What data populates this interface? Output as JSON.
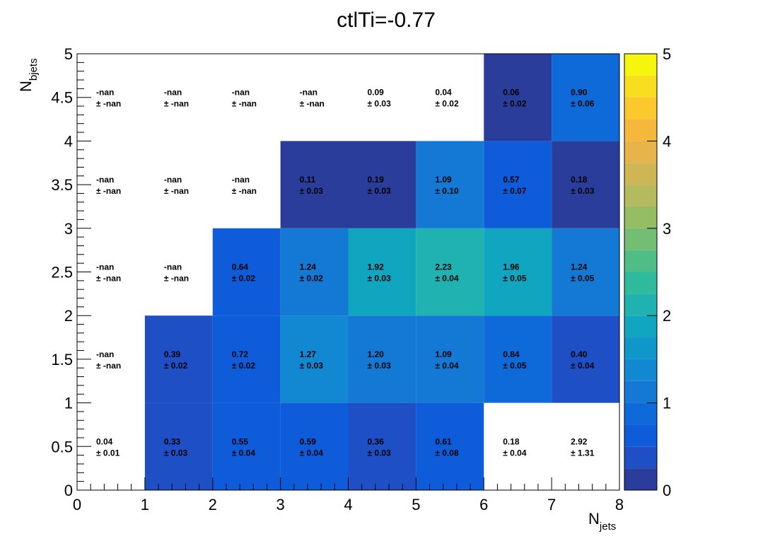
{
  "chart_data": {
    "type": "heatmap",
    "title": "ctlTi=-0.77",
    "xlabel": {
      "main": "N",
      "sub": "jets"
    },
    "ylabel": {
      "main": "N",
      "sub": "bjets"
    },
    "xlim": [
      0,
      8
    ],
    "ylim": [
      0,
      5
    ],
    "x_ticks": [
      "0",
      "1",
      "2",
      "3",
      "4",
      "5",
      "6",
      "7",
      "8"
    ],
    "y_ticks": [
      "0",
      "0.5",
      "1",
      "1.5",
      "2",
      "2.5",
      "3",
      "3.5",
      "4",
      "4.5",
      "5"
    ],
    "colorbar": {
      "min": 0,
      "max": 5,
      "ticks": [
        "0",
        "1",
        "2",
        "3",
        "4",
        "5"
      ],
      "palette": "parula"
    },
    "x_bins": [
      [
        0,
        1
      ],
      [
        1,
        2
      ],
      [
        2,
        3
      ],
      [
        3,
        4
      ],
      [
        4,
        5
      ],
      [
        5,
        6
      ],
      [
        6,
        7
      ],
      [
        7,
        8
      ]
    ],
    "y_bins": [
      [
        0,
        1
      ],
      [
        1,
        2
      ],
      [
        2,
        3
      ],
      [
        3,
        4
      ],
      [
        4,
        5
      ]
    ],
    "cells": [
      [
        {
          "value": 0.04,
          "label": "0.04",
          "error": "± 0.01",
          "drawn": false
        },
        {
          "value": 0.33,
          "label": "0.33",
          "error": "± 0.03",
          "drawn": true
        },
        {
          "value": 0.55,
          "label": "0.55",
          "error": "± 0.04",
          "drawn": true
        },
        {
          "value": 0.59,
          "label": "0.59",
          "error": "± 0.04",
          "drawn": true
        },
        {
          "value": 0.36,
          "label": "0.36",
          "error": "± 0.03",
          "drawn": true
        },
        {
          "value": 0.61,
          "label": "0.61",
          "error": "± 0.08",
          "drawn": true
        },
        {
          "value": 0.18,
          "label": "0.18",
          "error": "± 0.04",
          "drawn": false
        },
        {
          "value": 2.92,
          "label": "2.92",
          "error": "± 1.31",
          "drawn": false
        }
      ],
      [
        {
          "value": null,
          "label": "-nan",
          "error": "± -nan",
          "drawn": false
        },
        {
          "value": 0.39,
          "label": "0.39",
          "error": "± 0.02",
          "drawn": true
        },
        {
          "value": 0.72,
          "label": "0.72",
          "error": "± 0.02",
          "drawn": true
        },
        {
          "value": 1.27,
          "label": "1.27",
          "error": "± 0.03",
          "drawn": true
        },
        {
          "value": 1.2,
          "label": "1.20",
          "error": "± 0.03",
          "drawn": true
        },
        {
          "value": 1.09,
          "label": "1.09",
          "error": "± 0.04",
          "drawn": true
        },
        {
          "value": 0.84,
          "label": "0.84",
          "error": "± 0.05",
          "drawn": true
        },
        {
          "value": 0.4,
          "label": "0.40",
          "error": "± 0.04",
          "drawn": true
        }
      ],
      [
        {
          "value": null,
          "label": "-nan",
          "error": "± -nan",
          "drawn": false
        },
        {
          "value": null,
          "label": "-nan",
          "error": "± -nan",
          "drawn": false
        },
        {
          "value": 0.64,
          "label": "0.64",
          "error": "± 0.02",
          "drawn": true
        },
        {
          "value": 1.24,
          "label": "1.24",
          "error": "± 0.02",
          "drawn": true
        },
        {
          "value": 1.92,
          "label": "1.92",
          "error": "± 0.03",
          "drawn": true
        },
        {
          "value": 2.23,
          "label": "2.23",
          "error": "± 0.04",
          "drawn": true
        },
        {
          "value": 1.96,
          "label": "1.96",
          "error": "± 0.05",
          "drawn": true
        },
        {
          "value": 1.24,
          "label": "1.24",
          "error": "± 0.05",
          "drawn": true
        }
      ],
      [
        {
          "value": null,
          "label": "-nan",
          "error": "± -nan",
          "drawn": false
        },
        {
          "value": null,
          "label": "-nan",
          "error": "± -nan",
          "drawn": false
        },
        {
          "value": null,
          "label": "-nan",
          "error": "± -nan",
          "drawn": false
        },
        {
          "value": 0.11,
          "label": "0.11",
          "error": "± 0.03",
          "drawn": true
        },
        {
          "value": 0.19,
          "label": "0.19",
          "error": "± 0.03",
          "drawn": true
        },
        {
          "value": 1.09,
          "label": "1.09",
          "error": "± 0.10",
          "drawn": true
        },
        {
          "value": 0.57,
          "label": "0.57",
          "error": "± 0.07",
          "drawn": true
        },
        {
          "value": 0.18,
          "label": "0.18",
          "error": "± 0.03",
          "drawn": true
        }
      ],
      [
        {
          "value": null,
          "label": "-nan",
          "error": "± -nan",
          "drawn": false
        },
        {
          "value": null,
          "label": "-nan",
          "error": "± -nan",
          "drawn": false
        },
        {
          "value": null,
          "label": "-nan",
          "error": "± -nan",
          "drawn": false
        },
        {
          "value": null,
          "label": "-nan",
          "error": "± -nan",
          "drawn": false
        },
        {
          "value": 0.09,
          "label": "0.09",
          "error": "± 0.03",
          "drawn": false
        },
        {
          "value": 0.04,
          "label": "0.04",
          "error": "± 0.02",
          "drawn": false
        },
        {
          "value": 0.06,
          "label": "0.06",
          "error": "± 0.02",
          "drawn": true
        },
        {
          "value": 0.9,
          "label": "0.90",
          "error": "± 0.06",
          "drawn": true
        }
      ]
    ]
  }
}
